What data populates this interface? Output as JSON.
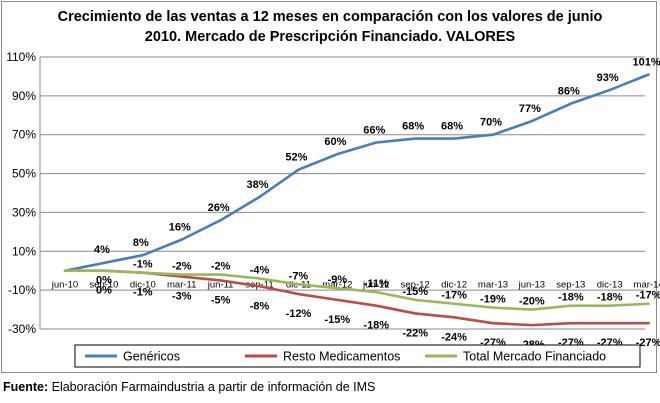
{
  "chart_title": "Crecimiento de las ventas a 12 meses en comparación con los valores de junio 2010.  Mercado de Prescripción Financiado. VALORES",
  "source": {
    "label": "Fuente:",
    "text": " Elaboración Farmaindustria a partir de información de IMS"
  },
  "chart_data": {
    "type": "line",
    "title": "Crecimiento de las ventas a 12 meses en comparación con los valores de junio 2010.  Mercado de Prescripción Financiado. VALORES",
    "xlabel": "",
    "ylabel": "",
    "ylim": [
      -30,
      110
    ],
    "yticks": [
      -30,
      -10,
      10,
      30,
      50,
      70,
      90,
      110
    ],
    "ytick_labels": [
      "-30%",
      "-10%",
      "10%",
      "30%",
      "50%",
      "70%",
      "90%",
      "110%"
    ],
    "grid": true,
    "legend_position": "bottom",
    "categories": [
      "jun-10",
      "sep-10",
      "dic-10",
      "mar-11",
      "jun-11",
      "sep-11",
      "dic-11",
      "mar-12",
      "jun-12",
      "sep-12",
      "dic-12",
      "mar-13",
      "jun-13",
      "sep-13",
      "dic-13",
      "mar-14"
    ],
    "series": [
      {
        "name": "Genéricos",
        "color": "#4a7ebb",
        "values": [
          0,
          4,
          8,
          16,
          26,
          38,
          52,
          60,
          66,
          68,
          68,
          70,
          77,
          86,
          93,
          101
        ],
        "labels": [
          "",
          "4%",
          "8%",
          "16%",
          "26%",
          "38%",
          "52%",
          "60%",
          "66%",
          "68%",
          "68%",
          "70%",
          "77%",
          "86%",
          "93%",
          "101%"
        ]
      },
      {
        "name": "Resto Medicamentos",
        "color": "#be4b48",
        "values": [
          0,
          0,
          -1,
          -3,
          -5,
          -8,
          -12,
          -15,
          -18,
          -22,
          -24,
          -27,
          -28,
          -27,
          -27,
          -27
        ],
        "labels": [
          "",
          "0%",
          "-1%",
          "-3%",
          "-5%",
          "-8%",
          "-12%",
          "-15%",
          "-18%",
          "-22%",
          "-24%",
          "-27%",
          "-28%",
          "-27%",
          "-27%",
          "-27%"
        ]
      },
      {
        "name": "Total Mercado Financiado",
        "color": "#98b954",
        "values": [
          0,
          0,
          -1,
          -2,
          -2,
          -4,
          -7,
          -9,
          -11,
          -15,
          -17,
          -19,
          -20,
          -18,
          -18,
          -17
        ],
        "labels": [
          "",
          "0%",
          "-1%",
          "-2%",
          "-2%",
          "-4%",
          "-7%",
          "-9%",
          "-11%",
          "-15%",
          "-17%",
          "-19%",
          "-20%",
          "-18%",
          "-18%",
          "-17%"
        ]
      }
    ]
  }
}
